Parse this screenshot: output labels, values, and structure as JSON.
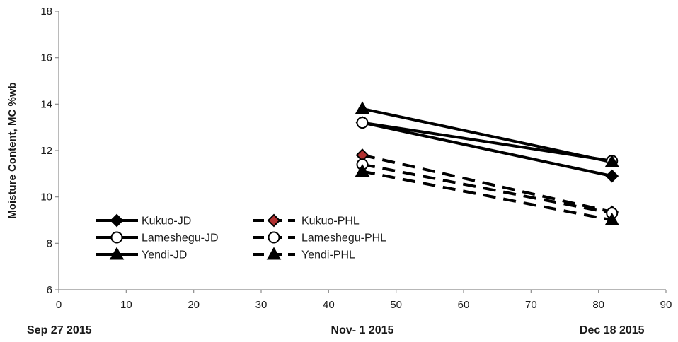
{
  "chart_data": {
    "type": "line",
    "title": "",
    "xlabel": "",
    "ylabel": "Moisture Content, MC %wb",
    "xlim": [
      0,
      90
    ],
    "ylim": [
      6,
      18
    ],
    "x_ticks": [
      0,
      10,
      20,
      30,
      40,
      50,
      60,
      70,
      80,
      90
    ],
    "y_ticks": [
      6,
      8,
      10,
      12,
      14,
      16,
      18
    ],
    "grid": false,
    "legend_position": "bottom-left",
    "date_labels": [
      {
        "x": 0,
        "text": "Sep  27 2015"
      },
      {
        "x": 45,
        "text": "Nov- 1 2015"
      },
      {
        "x": 82,
        "text": "Dec 18 2015"
      }
    ],
    "series": [
      {
        "name": "Kukuo-JD",
        "x": [
          45,
          82
        ],
        "y": [
          13.2,
          10.9
        ],
        "line": "solid",
        "marker": "diamond",
        "marker_fill": "#000000"
      },
      {
        "name": "Lameshegu-JD",
        "x": [
          45,
          82
        ],
        "y": [
          13.2,
          11.55
        ],
        "line": "solid",
        "marker": "circle",
        "marker_fill": "#ffffff"
      },
      {
        "name": "Yendi-JD",
        "x": [
          45,
          82
        ],
        "y": [
          13.8,
          11.5
        ],
        "line": "solid",
        "marker": "triangle",
        "marker_fill": "#000000"
      },
      {
        "name": "Kukuo-PHL",
        "x": [
          45,
          82
        ],
        "y": [
          11.8,
          9.35
        ],
        "line": "dashed",
        "marker": "diamond",
        "marker_fill": "#b03030"
      },
      {
        "name": "Lameshegu-PHL",
        "x": [
          45,
          82
        ],
        "y": [
          11.4,
          9.3
        ],
        "line": "dashed",
        "marker": "circle",
        "marker_fill": "#ffffff"
      },
      {
        "name": "Yendi-PHL",
        "x": [
          45,
          82
        ],
        "y": [
          11.1,
          9.0
        ],
        "line": "dashed",
        "marker": "triangle",
        "marker_fill": "#000000"
      }
    ],
    "colors": {
      "line": "#000000",
      "axis": "#8c8c8c"
    }
  }
}
